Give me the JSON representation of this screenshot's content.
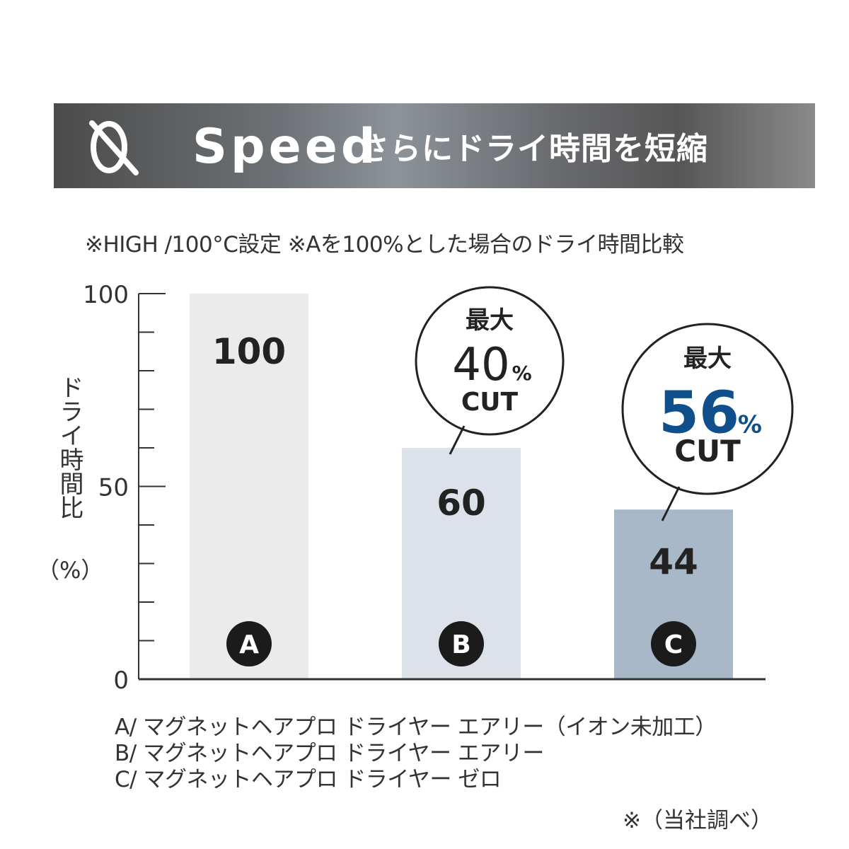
{
  "banner": {
    "word": "Speed",
    "subtitle": "さらにドライ時間を短縮"
  },
  "note": "※HIGH /100°C設定  ※Aを100%とした場合のドライ時間比較",
  "chart_data": {
    "type": "bar",
    "categories": [
      "A",
      "B",
      "C"
    ],
    "values": [
      100,
      60,
      44
    ],
    "value_labels": [
      "100",
      "60",
      "44"
    ],
    "ylabel": "ドライ時間比",
    "yunit": "（%）",
    "ylim": [
      0,
      100
    ],
    "yticks": [
      "0",
      "50",
      "100"
    ],
    "minor_tick_step": 10,
    "bar_colors": [
      "#ebebeb",
      "#dde1ea",
      "#a8b8c9"
    ],
    "callouts": [
      {
        "category": "B",
        "line1": "最大",
        "number": "40",
        "percent": "%",
        "line3": "CUT",
        "number_color": "#222222"
      },
      {
        "category": "C",
        "line1": "最大",
        "number": "56",
        "percent": "%",
        "line3": "CUT",
        "number_color": "#0e4f8c"
      }
    ]
  },
  "legend": [
    "A/ マグネットヘアプロ ドライヤー エアリー（イオン未加工）",
    "B/ マグネットヘアプロ ドライヤー エアリー",
    "C/ マグネットヘアプロ ドライヤー ゼロ"
  ],
  "source": "※（当社調べ）"
}
